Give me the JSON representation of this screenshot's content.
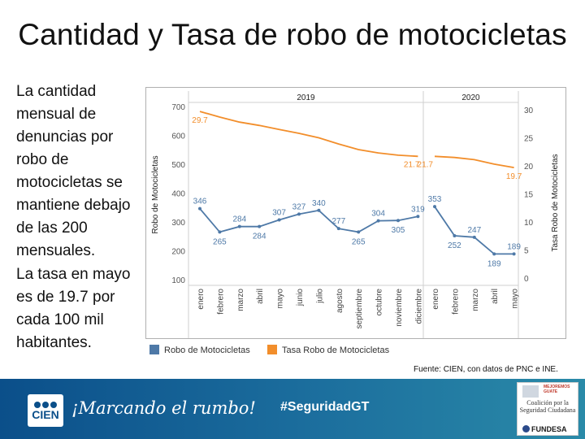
{
  "title": "Cantidad y Tasa de robo de motocicletas",
  "paragraphs": [
    "La cantidad mensual de denuncias por robo de motocicletas se mantiene debajo de las 200 mensuales.",
    "La tasa en mayo es de 19.7 por cada 100 mil habitantes."
  ],
  "source": "Fuente: CIEN, con datos de PNC e INE.",
  "footer": {
    "logo_text": "CIEN",
    "slogan": "¡Marcando el rumbo!",
    "hashtag": "#SeguridadGT",
    "partner_logo": {
      "top_text": "MEJOREMOS GUATE",
      "coalition": "Coalición por la Seguridad Ciudadana",
      "brand": "FUNDESA"
    }
  },
  "colors": {
    "robo": "#4e79a7",
    "tasa": "#f28e2b",
    "footer": "#0b4f8a"
  },
  "chart_data": {
    "type": "line",
    "panels": [
      {
        "label": "2019",
        "months": [
          "enero",
          "febrero",
          "marzo",
          "abril",
          "mayo",
          "junio",
          "julio",
          "agosto",
          "septiembre",
          "octubre",
          "noviembre",
          "diciembre"
        ]
      },
      {
        "label": "2020",
        "months": [
          "enero",
          "febrero",
          "marzo",
          "abril",
          "mayo"
        ]
      }
    ],
    "series": [
      {
        "name": "Robo de Motocicletas",
        "axis": "left",
        "values": [
          346,
          265,
          284,
          284,
          307,
          327,
          340,
          277,
          265,
          304,
          305,
          319,
          353,
          252,
          247,
          189,
          189
        ]
      },
      {
        "name": "Tasa Robo de Motocicletas",
        "axis": "right",
        "values": [
          29.7,
          28.7,
          27.8,
          27.2,
          26.5,
          25.8,
          25.0,
          23.9,
          22.9,
          22.3,
          21.9,
          21.7,
          21.7,
          21.5,
          21.1,
          20.3,
          19.7
        ],
        "labels_shown": {
          "0": "29.7",
          "11": "21.7",
          "12": "21.7",
          "16": "19.7"
        }
      }
    ],
    "left_axis": {
      "label": "Robo de Motocicletas",
      "ylim": [
        100,
        700
      ],
      "ticks": [
        100,
        200,
        300,
        400,
        500,
        600,
        700
      ]
    },
    "right_axis": {
      "label": "Tasa Robo de Motocicletas",
      "ylim": [
        0,
        30
      ],
      "ticks": [
        0,
        5,
        10,
        15,
        20,
        25,
        30
      ]
    },
    "legend": [
      "Robo de Motocicletas",
      "Tasa Robo de Motocicletas"
    ]
  }
}
